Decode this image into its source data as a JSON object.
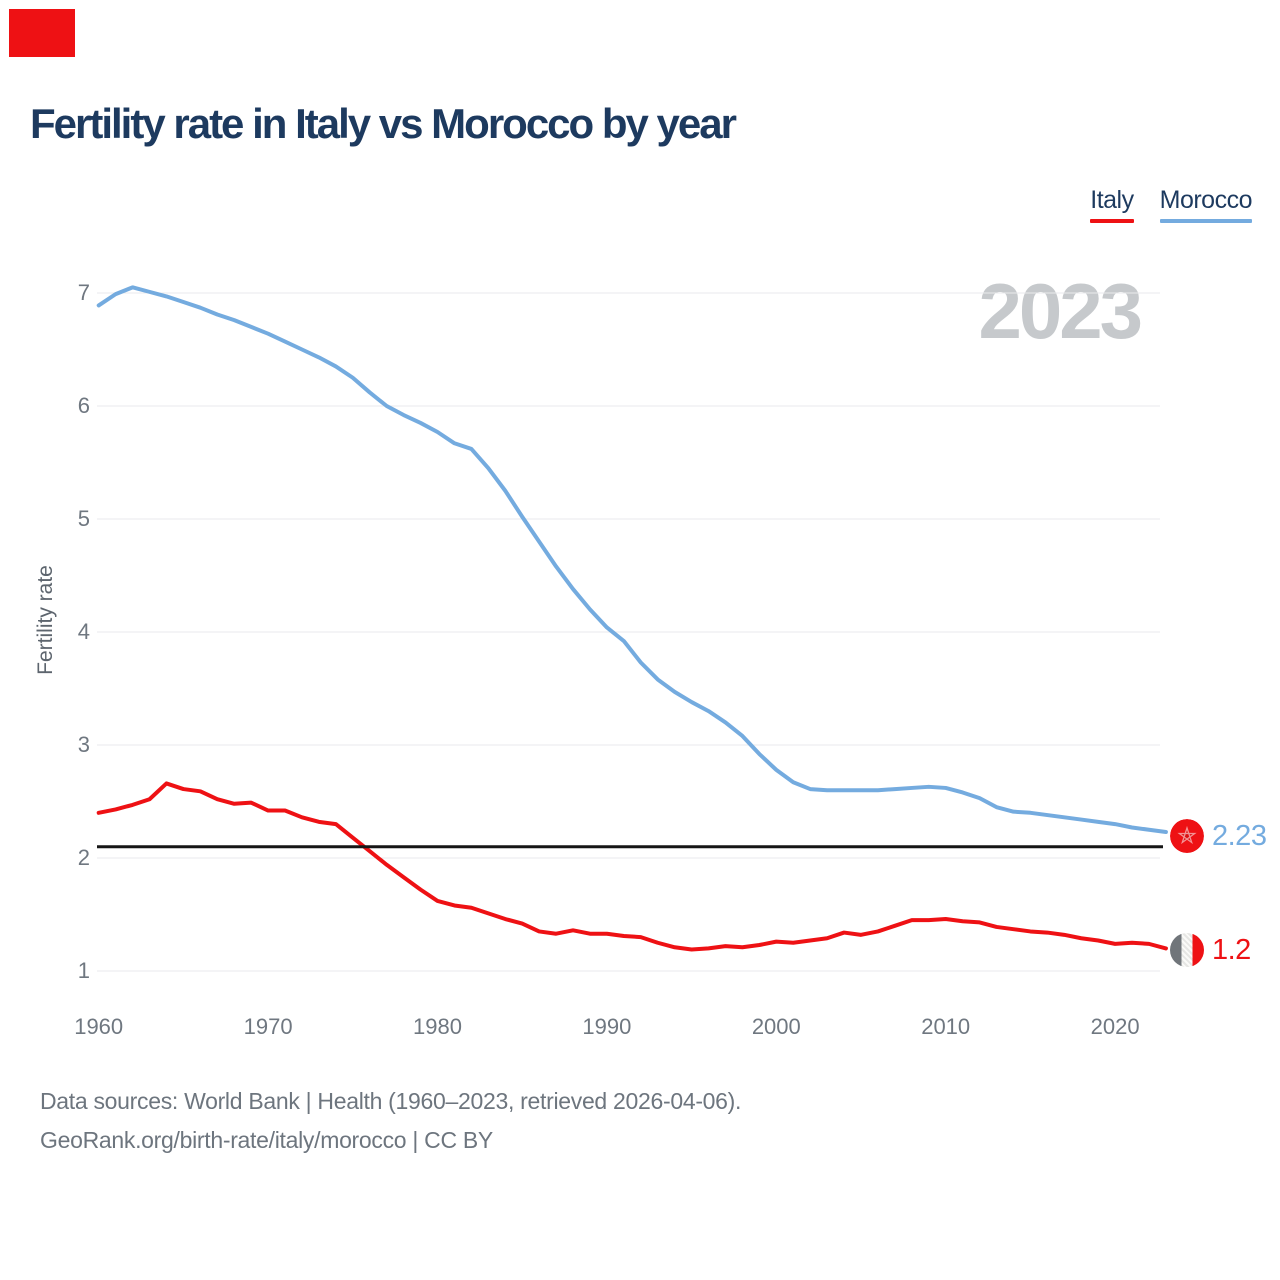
{
  "page": {
    "title": "Fertility rate in Italy vs Morocco by year",
    "watermark": "2023",
    "footer_line1": "Data sources: World Bank | Health (1960–2023, retrieved 2026-04-06).",
    "footer_line2": "GeoRank.org/birth-rate/italy/morocco | CC BY"
  },
  "legend": [
    {
      "label": "Italy",
      "color": "#ee1114"
    },
    {
      "label": "Morocco",
      "color": "#74abdf"
    }
  ],
  "end_labels": {
    "morocco": {
      "value": "2.23",
      "color": "#74abdf",
      "flag": "morocco-flag"
    },
    "italy": {
      "value": "1.2",
      "color": "#ee1114",
      "flag": "italy-flag"
    }
  },
  "colors": {
    "title": "#1d3a5f",
    "axis_text": "#6f7780",
    "gridline": "#e9eaec",
    "reference_line": "#161616",
    "watermark": "#c6c9cc",
    "italy_line": "#ee1114",
    "morocco_line": "#74abdf"
  },
  "chart_data": {
    "type": "line",
    "title": "Fertility rate in Italy vs Morocco by year",
    "xlabel": "",
    "ylabel": "Fertility rate",
    "ylim": [
      1,
      7
    ],
    "yticks": [
      1,
      2,
      3,
      4,
      5,
      6,
      7
    ],
    "xticks": [
      1960,
      1970,
      1980,
      1990,
      2000,
      2010,
      2020
    ],
    "grid": "horizontal",
    "legend_position": "top-right",
    "reference_line": {
      "value": 2.1
    },
    "x": [
      1960,
      1961,
      1962,
      1963,
      1964,
      1965,
      1966,
      1967,
      1968,
      1969,
      1970,
      1971,
      1972,
      1973,
      1974,
      1975,
      1976,
      1977,
      1978,
      1979,
      1980,
      1981,
      1982,
      1983,
      1984,
      1985,
      1986,
      1987,
      1988,
      1989,
      1990,
      1991,
      1992,
      1993,
      1994,
      1995,
      1996,
      1997,
      1998,
      1999,
      2000,
      2001,
      2002,
      2003,
      2004,
      2005,
      2006,
      2007,
      2008,
      2009,
      2010,
      2011,
      2012,
      2013,
      2014,
      2015,
      2016,
      2017,
      2018,
      2019,
      2020,
      2021,
      2022,
      2023
    ],
    "series": [
      {
        "name": "Italy",
        "color": "#ee1114",
        "values": [
          2.4,
          2.43,
          2.47,
          2.52,
          2.66,
          2.61,
          2.59,
          2.52,
          2.48,
          2.49,
          2.42,
          2.42,
          2.36,
          2.32,
          2.3,
          2.18,
          2.06,
          1.94,
          1.83,
          1.72,
          1.62,
          1.58,
          1.56,
          1.51,
          1.46,
          1.42,
          1.35,
          1.33,
          1.36,
          1.33,
          1.33,
          1.31,
          1.3,
          1.25,
          1.21,
          1.19,
          1.2,
          1.22,
          1.21,
          1.23,
          1.26,
          1.25,
          1.27,
          1.29,
          1.34,
          1.32,
          1.35,
          1.4,
          1.45,
          1.45,
          1.46,
          1.44,
          1.43,
          1.39,
          1.37,
          1.35,
          1.34,
          1.32,
          1.29,
          1.27,
          1.24,
          1.25,
          1.24,
          1.2
        ]
      },
      {
        "name": "Morocco",
        "color": "#74abdf",
        "values": [
          6.89,
          6.99,
          7.05,
          7.01,
          6.97,
          6.92,
          6.87,
          6.81,
          6.76,
          6.7,
          6.64,
          6.57,
          6.5,
          6.43,
          6.35,
          6.25,
          6.12,
          6.0,
          5.92,
          5.85,
          5.77,
          5.67,
          5.62,
          5.45,
          5.25,
          5.02,
          4.8,
          4.58,
          4.38,
          4.2,
          4.04,
          3.92,
          3.73,
          3.58,
          3.47,
          3.38,
          3.3,
          3.2,
          3.08,
          2.92,
          2.78,
          2.67,
          2.61,
          2.6,
          2.6,
          2.6,
          2.6,
          2.61,
          2.62,
          2.63,
          2.62,
          2.58,
          2.53,
          2.45,
          2.41,
          2.4,
          2.38,
          2.36,
          2.34,
          2.32,
          2.3,
          2.27,
          2.25,
          2.23
        ]
      }
    ]
  }
}
